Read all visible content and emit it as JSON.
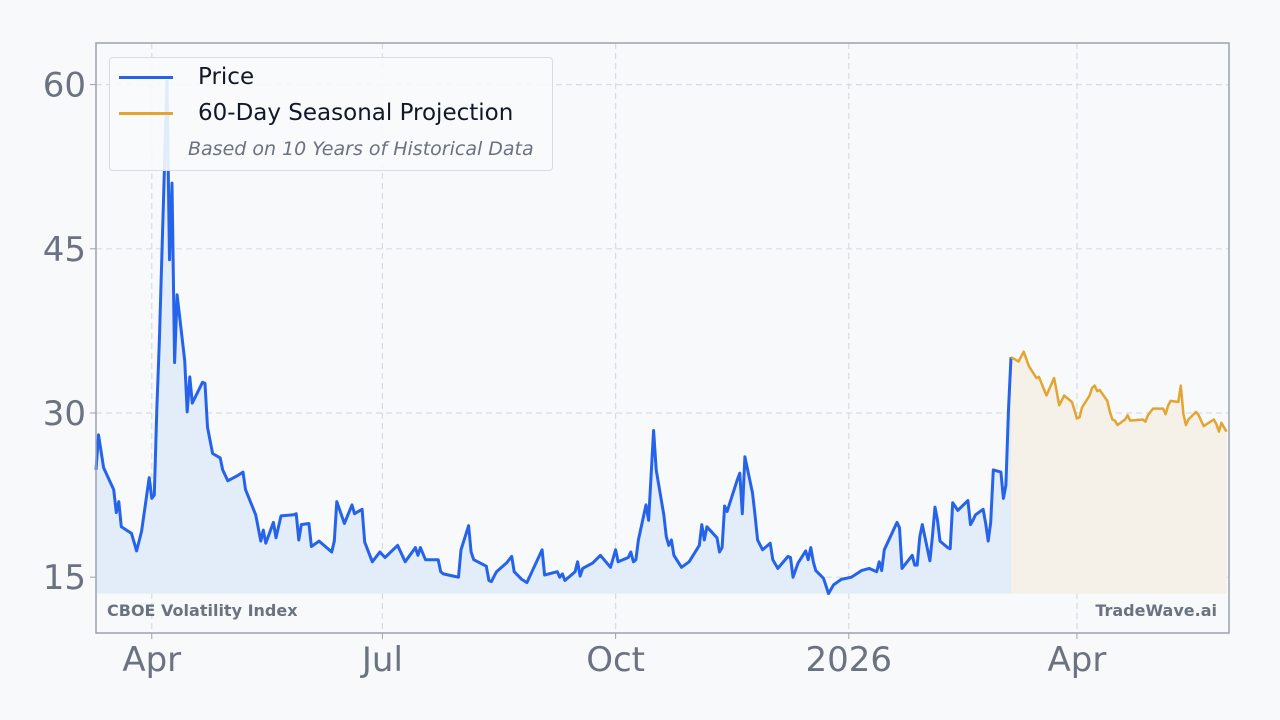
{
  "chart_data": {
    "type": "line",
    "title": "",
    "xlabel": "",
    "ylabel": "",
    "xlim": [
      "2025-03-10",
      "2026-05-31"
    ],
    "ylim": [
      9.9,
      63.8
    ],
    "grid": true,
    "legend_placement": "top-left",
    "x_ticks": [
      {
        "date": "2025-04-01",
        "label": "Apr"
      },
      {
        "date": "2025-07-01",
        "label": "Jul"
      },
      {
        "date": "2025-10-01",
        "label": "Oct"
      },
      {
        "date": "2026-01-01",
        "label": "2026"
      },
      {
        "date": "2026-04-01",
        "label": "Apr"
      }
    ],
    "y_ticks": [
      15,
      30,
      45,
      60
    ],
    "fill_baseline": 13.5,
    "legend_note": "Based on 10 Years of Historical Data",
    "series": [
      {
        "name": "Price",
        "color": "#2563eb",
        "fill": "#e3edf9",
        "points": [
          [
            "2025-03-10",
            24.8
          ],
          [
            "2025-03-11",
            28.0
          ],
          [
            "2025-03-13",
            25.0
          ],
          [
            "2025-03-17",
            23.0
          ],
          [
            "2025-03-18",
            20.9
          ],
          [
            "2025-03-19",
            21.9
          ],
          [
            "2025-03-20",
            19.6
          ],
          [
            "2025-03-24",
            19.0
          ],
          [
            "2025-03-26",
            17.4
          ],
          [
            "2025-03-28",
            19.2
          ],
          [
            "2025-03-31",
            24.1
          ],
          [
            "2025-04-01",
            22.2
          ],
          [
            "2025-04-02",
            22.5
          ],
          [
            "2025-04-03",
            30.3
          ],
          [
            "2025-04-04",
            36.7
          ],
          [
            "2025-04-07",
            60.3
          ],
          [
            "2025-04-08",
            44.0
          ],
          [
            "2025-04-09",
            51.0
          ],
          [
            "2025-04-10",
            34.6
          ],
          [
            "2025-04-11",
            40.8
          ],
          [
            "2025-04-14",
            34.8
          ],
          [
            "2025-04-15",
            30.1
          ],
          [
            "2025-04-16",
            33.3
          ],
          [
            "2025-04-17",
            30.9
          ],
          [
            "2025-04-21",
            32.8
          ],
          [
            "2025-04-22",
            32.7
          ],
          [
            "2025-04-23",
            28.7
          ],
          [
            "2025-04-25",
            26.3
          ],
          [
            "2025-04-28",
            25.9
          ],
          [
            "2025-04-29",
            24.8
          ],
          [
            "2025-05-01",
            23.8
          ],
          [
            "2025-05-05",
            24.3
          ],
          [
            "2025-05-07",
            24.6
          ],
          [
            "2025-05-08",
            23.0
          ],
          [
            "2025-05-12",
            20.7
          ],
          [
            "2025-05-14",
            18.3
          ],
          [
            "2025-05-15",
            19.3
          ],
          [
            "2025-05-16",
            18.1
          ],
          [
            "2025-05-19",
            20.0
          ],
          [
            "2025-05-20",
            18.6
          ],
          [
            "2025-05-22",
            20.6
          ],
          [
            "2025-05-27",
            20.7
          ],
          [
            "2025-05-28",
            20.8
          ],
          [
            "2025-05-29",
            18.4
          ],
          [
            "2025-05-30",
            19.8
          ],
          [
            "2025-06-02",
            19.9
          ],
          [
            "2025-06-03",
            17.8
          ],
          [
            "2025-06-06",
            18.3
          ],
          [
            "2025-06-11",
            17.3
          ],
          [
            "2025-06-12",
            18.3
          ],
          [
            "2025-06-13",
            21.9
          ],
          [
            "2025-06-16",
            19.9
          ],
          [
            "2025-06-19",
            21.6
          ],
          [
            "2025-06-20",
            20.8
          ],
          [
            "2025-06-23",
            21.2
          ],
          [
            "2025-06-24",
            18.2
          ],
          [
            "2025-06-27",
            16.4
          ],
          [
            "2025-06-30",
            17.3
          ],
          [
            "2025-07-02",
            16.8
          ],
          [
            "2025-07-07",
            17.9
          ],
          [
            "2025-07-10",
            16.4
          ],
          [
            "2025-07-14",
            17.7
          ],
          [
            "2025-07-15",
            17.0
          ],
          [
            "2025-07-16",
            17.7
          ],
          [
            "2025-07-18",
            16.6
          ],
          [
            "2025-07-23",
            16.6
          ],
          [
            "2025-07-24",
            15.5
          ],
          [
            "2025-07-25",
            15.3
          ],
          [
            "2025-07-29",
            15.1
          ],
          [
            "2025-07-31",
            15.0
          ],
          [
            "2025-08-01",
            17.5
          ],
          [
            "2025-08-04",
            19.7
          ],
          [
            "2025-08-05",
            17.3
          ],
          [
            "2025-08-06",
            16.6
          ],
          [
            "2025-08-11",
            16.0
          ],
          [
            "2025-08-12",
            14.7
          ],
          [
            "2025-08-13",
            14.6
          ],
          [
            "2025-08-15",
            15.5
          ],
          [
            "2025-08-19",
            16.3
          ],
          [
            "2025-08-21",
            16.9
          ],
          [
            "2025-08-22",
            15.5
          ],
          [
            "2025-08-25",
            14.8
          ],
          [
            "2025-08-27",
            14.5
          ],
          [
            "2025-09-02",
            17.5
          ],
          [
            "2025-09-03",
            15.2
          ],
          [
            "2025-09-08",
            15.5
          ],
          [
            "2025-09-09",
            15.0
          ],
          [
            "2025-09-10",
            15.3
          ],
          [
            "2025-09-11",
            14.7
          ],
          [
            "2025-09-15",
            15.5
          ],
          [
            "2025-09-16",
            16.4
          ],
          [
            "2025-09-17",
            15.1
          ],
          [
            "2025-09-18",
            15.8
          ],
          [
            "2025-09-22",
            16.3
          ],
          [
            "2025-09-25",
            17.0
          ],
          [
            "2025-09-29",
            15.9
          ],
          [
            "2025-10-01",
            17.5
          ],
          [
            "2025-10-02",
            16.4
          ],
          [
            "2025-10-06",
            16.8
          ],
          [
            "2025-10-07",
            17.3
          ],
          [
            "2025-10-08",
            16.4
          ],
          [
            "2025-10-09",
            16.6
          ],
          [
            "2025-10-10",
            18.4
          ],
          [
            "2025-10-13",
            21.6
          ],
          [
            "2025-10-14",
            20.2
          ],
          [
            "2025-10-16",
            28.4
          ],
          [
            "2025-10-17",
            24.8
          ],
          [
            "2025-10-20",
            20.7
          ],
          [
            "2025-10-21",
            18.7
          ],
          [
            "2025-10-22",
            17.9
          ],
          [
            "2025-10-23",
            18.4
          ],
          [
            "2025-10-24",
            17.0
          ],
          [
            "2025-10-27",
            15.9
          ],
          [
            "2025-10-30",
            16.4
          ],
          [
            "2025-11-03",
            17.9
          ],
          [
            "2025-11-04",
            19.8
          ],
          [
            "2025-11-05",
            18.4
          ],
          [
            "2025-11-06",
            19.6
          ],
          [
            "2025-11-10",
            18.6
          ],
          [
            "2025-11-11",
            17.3
          ],
          [
            "2025-11-12",
            17.7
          ],
          [
            "2025-11-13",
            21.5
          ],
          [
            "2025-11-14",
            21.0
          ],
          [
            "2025-11-18",
            23.9
          ],
          [
            "2025-11-19",
            24.5
          ],
          [
            "2025-11-20",
            20.8
          ],
          [
            "2025-11-21",
            26.0
          ],
          [
            "2025-11-24",
            22.7
          ],
          [
            "2025-11-25",
            20.7
          ],
          [
            "2025-11-26",
            18.4
          ],
          [
            "2025-11-28",
            17.5
          ],
          [
            "2025-12-01",
            18.1
          ],
          [
            "2025-12-02",
            16.6
          ],
          [
            "2025-12-04",
            15.8
          ],
          [
            "2025-12-08",
            16.9
          ],
          [
            "2025-12-09",
            16.8
          ],
          [
            "2025-12-10",
            15.0
          ],
          [
            "2025-12-12",
            16.3
          ],
          [
            "2025-12-15",
            17.4
          ],
          [
            "2025-12-16",
            16.6
          ],
          [
            "2025-12-17",
            17.7
          ],
          [
            "2025-12-18",
            16.4
          ],
          [
            "2025-12-19",
            15.6
          ],
          [
            "2025-12-22",
            14.9
          ],
          [
            "2025-12-23",
            14.2
          ],
          [
            "2025-12-24",
            13.5
          ],
          [
            "2025-12-26",
            14.3
          ],
          [
            "2025-12-29",
            14.8
          ],
          [
            "2025-12-31",
            14.9
          ],
          [
            "2026-01-02",
            15.0
          ],
          [
            "2026-01-06",
            15.6
          ],
          [
            "2026-01-09",
            15.8
          ],
          [
            "2026-01-12",
            15.5
          ],
          [
            "2026-01-13",
            16.4
          ],
          [
            "2026-01-14",
            15.6
          ],
          [
            "2026-01-15",
            17.5
          ],
          [
            "2026-01-20",
            20.0
          ],
          [
            "2026-01-21",
            19.5
          ],
          [
            "2026-01-22",
            15.8
          ],
          [
            "2026-01-26",
            17.0
          ],
          [
            "2026-01-27",
            16.1
          ],
          [
            "2026-01-28",
            16.1
          ],
          [
            "2026-01-29",
            18.7
          ],
          [
            "2026-01-30",
            19.8
          ],
          [
            "2026-02-02",
            16.5
          ],
          [
            "2026-02-03",
            18.7
          ],
          [
            "2026-02-04",
            21.4
          ],
          [
            "2026-02-05",
            20.2
          ],
          [
            "2026-02-06",
            18.3
          ],
          [
            "2026-02-09",
            17.7
          ],
          [
            "2026-02-10",
            17.6
          ],
          [
            "2026-02-11",
            21.8
          ],
          [
            "2026-02-13",
            21.1
          ],
          [
            "2026-02-17",
            22.0
          ],
          [
            "2026-02-18",
            19.8
          ],
          [
            "2026-02-19",
            20.2
          ],
          [
            "2026-02-20",
            20.7
          ],
          [
            "2026-02-23",
            21.2
          ],
          [
            "2026-02-24",
            19.9
          ],
          [
            "2026-02-25",
            18.3
          ],
          [
            "2026-02-26",
            20.0
          ],
          [
            "2026-02-27",
            24.8
          ],
          [
            "2026-03-02",
            24.6
          ],
          [
            "2026-03-03",
            22.2
          ],
          [
            "2026-03-04",
            23.4
          ],
          [
            "2026-03-05",
            30.3
          ],
          [
            "2026-03-06",
            35.1
          ]
        ]
      },
      {
        "name": "60-Day Seasonal Projection",
        "color": "#e3a532",
        "fill": "#f5f0e8",
        "points": [
          [
            "2026-03-06",
            35.1
          ],
          [
            "2026-03-09",
            34.7
          ],
          [
            "2026-03-11",
            35.6
          ],
          [
            "2026-03-13",
            34.3
          ],
          [
            "2026-03-16",
            33.2
          ],
          [
            "2026-03-17",
            33.3
          ],
          [
            "2026-03-20",
            31.6
          ],
          [
            "2026-03-23",
            33.2
          ],
          [
            "2026-03-24",
            32.0
          ],
          [
            "2026-03-25",
            30.7
          ],
          [
            "2026-03-27",
            31.6
          ],
          [
            "2026-03-30",
            31.0
          ],
          [
            "2026-03-31",
            30.3
          ],
          [
            "2026-04-01",
            29.5
          ],
          [
            "2026-04-02",
            29.6
          ],
          [
            "2026-04-03",
            30.5
          ],
          [
            "2026-04-06",
            31.6
          ],
          [
            "2026-04-07",
            32.3
          ],
          [
            "2026-04-08",
            32.5
          ],
          [
            "2026-04-09",
            32.0
          ],
          [
            "2026-04-10",
            32.1
          ],
          [
            "2026-04-13",
            31.1
          ],
          [
            "2026-04-14",
            30.1
          ],
          [
            "2026-04-15",
            29.4
          ],
          [
            "2026-04-16",
            29.3
          ],
          [
            "2026-04-17",
            28.9
          ],
          [
            "2026-04-20",
            29.4
          ],
          [
            "2026-04-21",
            29.8
          ],
          [
            "2026-04-22",
            29.3
          ],
          [
            "2026-04-27",
            29.4
          ],
          [
            "2026-04-28",
            29.2
          ],
          [
            "2026-04-29",
            29.8
          ],
          [
            "2026-05-01",
            30.4
          ],
          [
            "2026-05-05",
            30.4
          ],
          [
            "2026-05-06",
            29.9
          ],
          [
            "2026-05-07",
            30.7
          ],
          [
            "2026-05-08",
            31.1
          ],
          [
            "2026-05-11",
            31.0
          ],
          [
            "2026-05-12",
            32.5
          ],
          [
            "2026-05-13",
            29.9
          ],
          [
            "2026-05-14",
            28.9
          ],
          [
            "2026-05-15",
            29.4
          ],
          [
            "2026-05-18",
            30.1
          ],
          [
            "2026-05-19",
            29.8
          ],
          [
            "2026-05-20",
            29.3
          ],
          [
            "2026-05-21",
            28.8
          ],
          [
            "2026-05-25",
            29.4
          ],
          [
            "2026-05-26",
            29.0
          ],
          [
            "2026-05-27",
            28.3
          ],
          [
            "2026-05-28",
            29.1
          ],
          [
            "2026-05-29",
            28.7
          ],
          [
            "2026-05-30",
            28.3
          ]
        ]
      }
    ]
  },
  "watermarks": {
    "left": "CBOE Volatility Index",
    "right": "TradeWave.ai"
  }
}
